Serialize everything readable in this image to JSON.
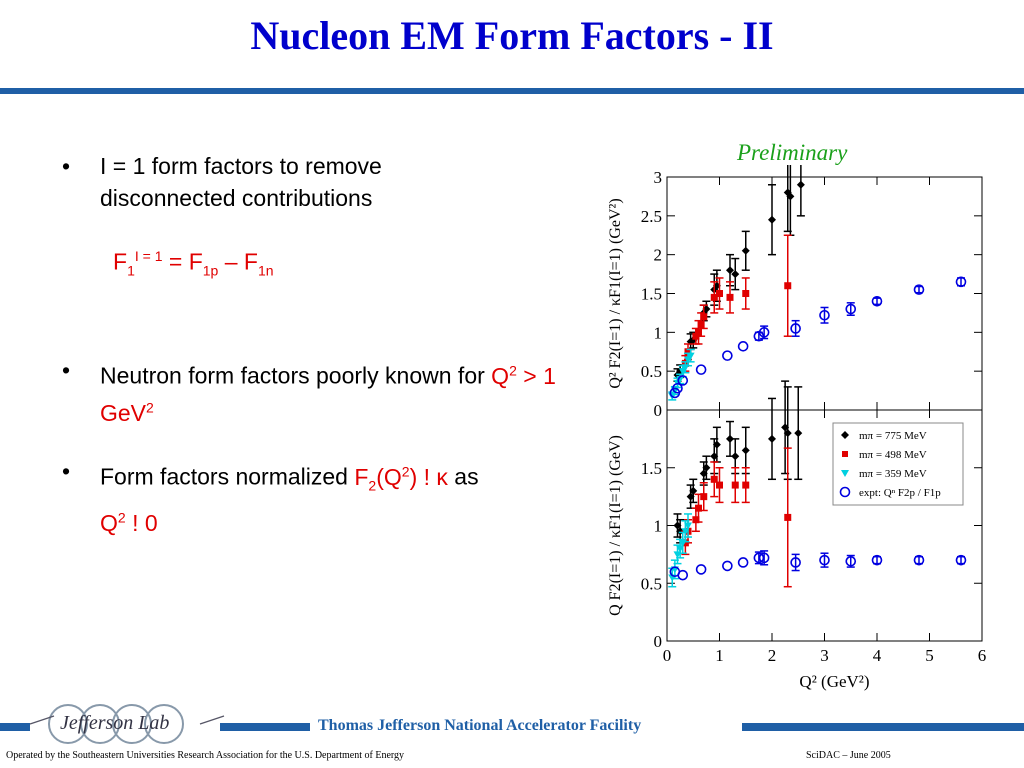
{
  "slide": {
    "title": "Nucleon EM Form Factors - II",
    "bullet1": "I = 1 form factors to remove disconnected contributions",
    "formula": {
      "f1": "F",
      "s1": "1",
      "sup1": "I = 1",
      "eq": " = F",
      "s2": "1p",
      "minus": " – F",
      "s3": "1n"
    },
    "bullet2": {
      "text": "Neutron form factors poorly known for ",
      "q": "Q",
      "q_sup": "2",
      "rest": " > 1 GeV",
      "rest_sup": "2"
    },
    "bullet3": {
      "text": "Form factors normalized ",
      "f": "F",
      "f_sub": "2",
      "q": "(Q",
      "q_sup": "2",
      "tail": ") ! κ",
      "as": " as",
      "q2": "Q",
      "q2_sup": "2",
      "zero": " ! 0"
    },
    "bullet_symbol": "•",
    "preliminary": "Preliminary"
  },
  "footer": {
    "lab_name": "Thomas Jefferson National Accelerator Facility",
    "logo_text": "Jefferson Lab",
    "operated_by": "Operated by the Southeastern Universities Research Association for the U.S. Department of  Energy",
    "event": "SciDAC – June  2005"
  },
  "colors": {
    "title": "#0000cc",
    "highlight": "#e00000",
    "preliminary": "#1aa01a",
    "bar": "#1f5fa6",
    "m775": "#000000",
    "m498": "#e00000",
    "m359": "#00d0e0",
    "expt": "#0000e0"
  },
  "chart_data": {
    "type": "scatter",
    "xlabel": "Q² (GeV²)",
    "xlim": [
      0,
      6
    ],
    "xticks": [
      "0",
      "1",
      "2",
      "3",
      "4",
      "5",
      "6"
    ],
    "legend": [
      {
        "label": "mπ = 775 MeV",
        "marker": "diamond",
        "color": "#000000"
      },
      {
        "label": "mπ = 498 MeV",
        "marker": "square",
        "color": "#e00000"
      },
      {
        "label": "mπ = 359 MeV",
        "marker": "triangle-down",
        "color": "#00d0e0"
      },
      {
        "label": "expt: Qⁿ F2p / F1p",
        "marker": "circle",
        "color": "#0000e0"
      }
    ],
    "panels": [
      {
        "ylabel": "Q² F2(I=1) / κF1(I=1) (GeV²)",
        "ylim": [
          0,
          3
        ],
        "yticks": [
          "0",
          "0.5",
          "1",
          "1.5",
          "2",
          "2.5",
          "3"
        ],
        "series": [
          {
            "marker": "diamond",
            "color": "#000000",
            "points": [
              [
                0.2,
                0.45,
                0.08
              ],
              [
                0.25,
                0.5,
                0.08
              ],
              [
                0.45,
                0.88,
                0.1
              ],
              [
                0.5,
                0.9,
                0.1
              ],
              [
                0.7,
                1.25,
                0.1
              ],
              [
                0.75,
                1.3,
                0.1
              ],
              [
                0.9,
                1.55,
                0.2
              ],
              [
                0.95,
                1.6,
                0.2
              ],
              [
                1.2,
                1.8,
                0.2
              ],
              [
                1.3,
                1.75,
                0.2
              ],
              [
                1.5,
                2.05,
                0.25
              ],
              [
                2.0,
                2.45,
                0.45
              ],
              [
                2.3,
                2.8,
                0.5
              ],
              [
                2.35,
                2.75,
                0.5
              ],
              [
                2.55,
                2.9,
                0.4
              ]
            ]
          },
          {
            "marker": "square",
            "color": "#e00000",
            "points": [
              [
                0.35,
                0.6,
                0.1
              ],
              [
                0.4,
                0.75,
                0.1
              ],
              [
                0.55,
                0.95,
                0.1
              ],
              [
                0.6,
                1.0,
                0.15
              ],
              [
                0.65,
                1.1,
                0.15
              ],
              [
                0.7,
                1.2,
                0.15
              ],
              [
                0.9,
                1.45,
                0.2
              ],
              [
                1.0,
                1.5,
                0.2
              ],
              [
                1.2,
                1.45,
                0.2
              ],
              [
                1.5,
                1.5,
                0.2
              ],
              [
                2.3,
                1.6,
                0.65
              ]
            ]
          },
          {
            "marker": "triangle-down",
            "color": "#00d0e0",
            "points": [
              [
                0.1,
                0.18,
                0.05
              ],
              [
                0.15,
                0.25,
                0.05
              ],
              [
                0.2,
                0.35,
                0.06
              ],
              [
                0.25,
                0.4,
                0.06
              ],
              [
                0.3,
                0.5,
                0.07
              ],
              [
                0.35,
                0.55,
                0.07
              ],
              [
                0.4,
                0.65,
                0.08
              ],
              [
                0.45,
                0.7,
                0.08
              ]
            ]
          },
          {
            "marker": "circle",
            "color": "#0000e0",
            "points": [
              [
                0.15,
                0.22,
                0
              ],
              [
                0.2,
                0.28,
                0
              ],
              [
                0.3,
                0.38,
                0
              ],
              [
                0.65,
                0.52,
                0
              ],
              [
                1.15,
                0.7,
                0
              ],
              [
                1.45,
                0.82,
                0
              ],
              [
                1.75,
                0.95,
                0.05
              ],
              [
                1.85,
                1.0,
                0.08
              ],
              [
                2.45,
                1.05,
                0.1
              ],
              [
                3.0,
                1.22,
                0.1
              ],
              [
                3.5,
                1.3,
                0.08
              ],
              [
                4.0,
                1.4,
                0.04
              ],
              [
                4.8,
                1.55,
                0.04
              ],
              [
                5.6,
                1.65,
                0.05
              ]
            ]
          }
        ]
      },
      {
        "ylabel": "Q F2(I=1) / κF1(I=1) (GeV)",
        "ylim": [
          0,
          2
        ],
        "yticks": [
          "0",
          "0.5",
          "1",
          "1.5"
        ],
        "series": [
          {
            "marker": "diamond",
            "color": "#000000",
            "points": [
              [
                0.2,
                1.0,
                0.1
              ],
              [
                0.25,
                0.95,
                0.1
              ],
              [
                0.45,
                1.25,
                0.1
              ],
              [
                0.5,
                1.3,
                0.1
              ],
              [
                0.7,
                1.45,
                0.1
              ],
              [
                0.75,
                1.5,
                0.1
              ],
              [
                0.9,
                1.6,
                0.15
              ],
              [
                0.95,
                1.7,
                0.15
              ],
              [
                1.2,
                1.75,
                0.15
              ],
              [
                1.3,
                1.6,
                0.15
              ],
              [
                1.5,
                1.65,
                0.2
              ],
              [
                2.0,
                1.75,
                0.35
              ],
              [
                2.25,
                1.85,
                0.4
              ],
              [
                2.3,
                1.8,
                0.4
              ],
              [
                2.5,
                1.8,
                0.4
              ]
            ]
          },
          {
            "marker": "square",
            "color": "#e00000",
            "points": [
              [
                0.35,
                0.85,
                0.1
              ],
              [
                0.4,
                0.95,
                0.1
              ],
              [
                0.55,
                1.05,
                0.1
              ],
              [
                0.6,
                1.15,
                0.12
              ],
              [
                0.7,
                1.25,
                0.12
              ],
              [
                0.9,
                1.4,
                0.15
              ],
              [
                1.0,
                1.35,
                0.15
              ],
              [
                1.3,
                1.35,
                0.15
              ],
              [
                1.5,
                1.35,
                0.15
              ],
              [
                2.3,
                1.07,
                0.6
              ]
            ]
          },
          {
            "marker": "triangle-down",
            "color": "#00d0e0",
            "points": [
              [
                0.1,
                0.55,
                0.08
              ],
              [
                0.15,
                0.62,
                0.08
              ],
              [
                0.2,
                0.75,
                0.08
              ],
              [
                0.25,
                0.8,
                0.08
              ],
              [
                0.3,
                0.85,
                0.09
              ],
              [
                0.35,
                0.95,
                0.09
              ],
              [
                0.4,
                1.0,
                0.1
              ]
            ]
          },
          {
            "marker": "circle",
            "color": "#0000e0",
            "points": [
              [
                0.15,
                0.6,
                0
              ],
              [
                0.3,
                0.57,
                0
              ],
              [
                0.65,
                0.62,
                0
              ],
              [
                1.15,
                0.65,
                0
              ],
              [
                1.45,
                0.68,
                0
              ],
              [
                1.75,
                0.72,
                0.05
              ],
              [
                1.85,
                0.72,
                0.06
              ],
              [
                2.45,
                0.68,
                0.07
              ],
              [
                3.0,
                0.7,
                0.06
              ],
              [
                3.5,
                0.69,
                0.05
              ],
              [
                4.0,
                0.7,
                0.03
              ],
              [
                4.8,
                0.7,
                0.03
              ],
              [
                5.6,
                0.7,
                0.03
              ]
            ]
          }
        ]
      }
    ]
  }
}
